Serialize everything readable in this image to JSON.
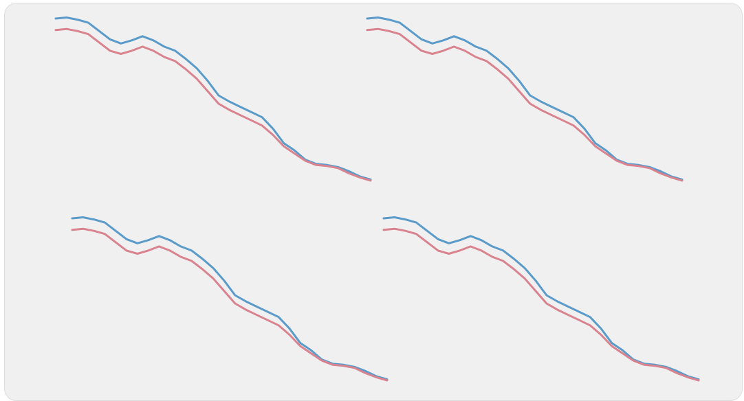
{
  "chart_data": [
    {
      "type": "line",
      "grid": false,
      "series": [
        {
          "color": "#5b9bc9",
          "values": [
            100,
            100.5,
            99.5,
            98,
            94,
            90,
            88,
            89.5,
            91.5,
            89.5,
            86.5,
            84.5,
            80.5,
            76,
            70,
            63,
            60,
            57.5,
            55,
            52.5,
            47,
            40,
            36.5,
            32,
            30,
            29.5,
            28.5,
            26.5,
            24,
            22.5
          ]
        },
        {
          "color": "#d9838f",
          "values": [
            94.5,
            95,
            94,
            92.5,
            88.5,
            84.5,
            83,
            84.5,
            86.5,
            84.5,
            81.5,
            79.5,
            75.5,
            71,
            65,
            59,
            56,
            53.5,
            51,
            48.5,
            44,
            38.5,
            35,
            31.5,
            29.5,
            29,
            28,
            25.5,
            23.5,
            22
          ]
        }
      ]
    },
    {
      "type": "line",
      "grid": false,
      "series": [
        {
          "color": "#5b9bc9",
          "values": [
            100,
            100.5,
            99.5,
            98,
            94,
            90,
            88,
            89.5,
            91.5,
            89.5,
            86.5,
            84.5,
            80.5,
            76,
            70,
            63,
            60,
            57.5,
            55,
            52.5,
            47,
            40,
            36.5,
            32,
            30,
            29.5,
            28.5,
            26.5,
            24,
            22.5
          ]
        },
        {
          "color": "#d9838f",
          "values": [
            94.5,
            95,
            94,
            92.5,
            88.5,
            84.5,
            83,
            84.5,
            86.5,
            84.5,
            81.5,
            79.5,
            75.5,
            71,
            65,
            59,
            56,
            53.5,
            51,
            48.5,
            44,
            38.5,
            35,
            31.5,
            29.5,
            29,
            28,
            25.5,
            23.5,
            22
          ]
        }
      ]
    },
    {
      "type": "line",
      "grid": false,
      "series": [
        {
          "color": "#5b9bc9",
          "values": [
            100,
            100.5,
            99.5,
            98,
            94,
            90,
            88,
            89.5,
            91.5,
            89.5,
            86.5,
            84.5,
            80.5,
            76,
            70,
            63,
            60,
            57.5,
            55,
            52.5,
            47,
            40,
            36.5,
            32,
            30,
            29.5,
            28.5,
            26.5,
            24,
            22.5
          ]
        },
        {
          "color": "#d9838f",
          "values": [
            94.5,
            95,
            94,
            92.5,
            88.5,
            84.5,
            83,
            84.5,
            86.5,
            84.5,
            81.5,
            79.5,
            75.5,
            71,
            65,
            59,
            56,
            53.5,
            51,
            48.5,
            44,
            38.5,
            35,
            31.5,
            29.5,
            29,
            28,
            25.5,
            23.5,
            22
          ]
        }
      ]
    },
    {
      "type": "line",
      "grid": false,
      "series": [
        {
          "color": "#5b9bc9",
          "values": [
            100,
            100.5,
            99.5,
            98,
            94,
            90,
            88,
            89.5,
            91.5,
            89.5,
            86.5,
            84.5,
            80.5,
            76,
            70,
            63,
            60,
            57.5,
            55,
            52.5,
            47,
            40,
            36.5,
            32,
            30,
            29.5,
            28.5,
            26.5,
            24,
            22.5
          ]
        },
        {
          "color": "#d9838f",
          "values": [
            94.5,
            95,
            94,
            92.5,
            88.5,
            84.5,
            83,
            84.5,
            86.5,
            84.5,
            81.5,
            79.5,
            75.5,
            71,
            65,
            59,
            56,
            53.5,
            51,
            48.5,
            44,
            38.5,
            35,
            31.5,
            29.5,
            29,
            28,
            25.5,
            23.5,
            22
          ]
        }
      ]
    }
  ]
}
